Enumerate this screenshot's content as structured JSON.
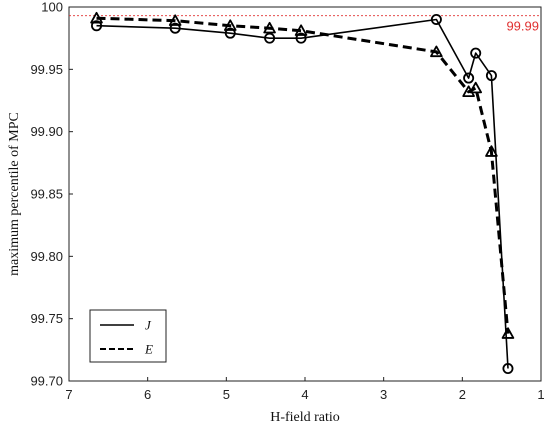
{
  "chart_data": {
    "type": "line",
    "title": "",
    "xlabel": "H-field ratio",
    "ylabel": "maximum percentile of MPC",
    "xlim": [
      7,
      1
    ],
    "x_reversed": true,
    "ylim": [
      99.7,
      100
    ],
    "x_ticks": [
      "7",
      "6",
      "5",
      "4",
      "3",
      "2",
      "1"
    ],
    "y_ticks": [
      "99.70",
      "99.75",
      "99.80",
      "99.85",
      "99.90",
      "99.95",
      "100"
    ],
    "grid": false,
    "legend_position": "bottom-left",
    "reference_line": {
      "y": 99.993,
      "label": "99.99",
      "color": "#e03030"
    },
    "series": [
      {
        "name": "J",
        "style": "solid",
        "marker": "circle",
        "color": "#000000",
        "x": [
          6.65,
          5.65,
          4.95,
          4.45,
          4.05,
          2.33,
          1.92,
          1.83,
          1.63,
          1.42
        ],
        "y": [
          99.985,
          99.983,
          99.979,
          99.975,
          99.975,
          99.99,
          99.943,
          99.963,
          99.945,
          99.71
        ]
      },
      {
        "name": "E",
        "style": "dashed",
        "marker": "triangle",
        "color": "#000000",
        "x": [
          6.65,
          5.65,
          4.95,
          4.45,
          4.05,
          2.33,
          1.92,
          1.83,
          1.63,
          1.42
        ],
        "y": [
          99.991,
          99.989,
          99.985,
          99.983,
          99.981,
          99.964,
          99.932,
          99.935,
          99.884,
          99.738
        ]
      }
    ]
  }
}
